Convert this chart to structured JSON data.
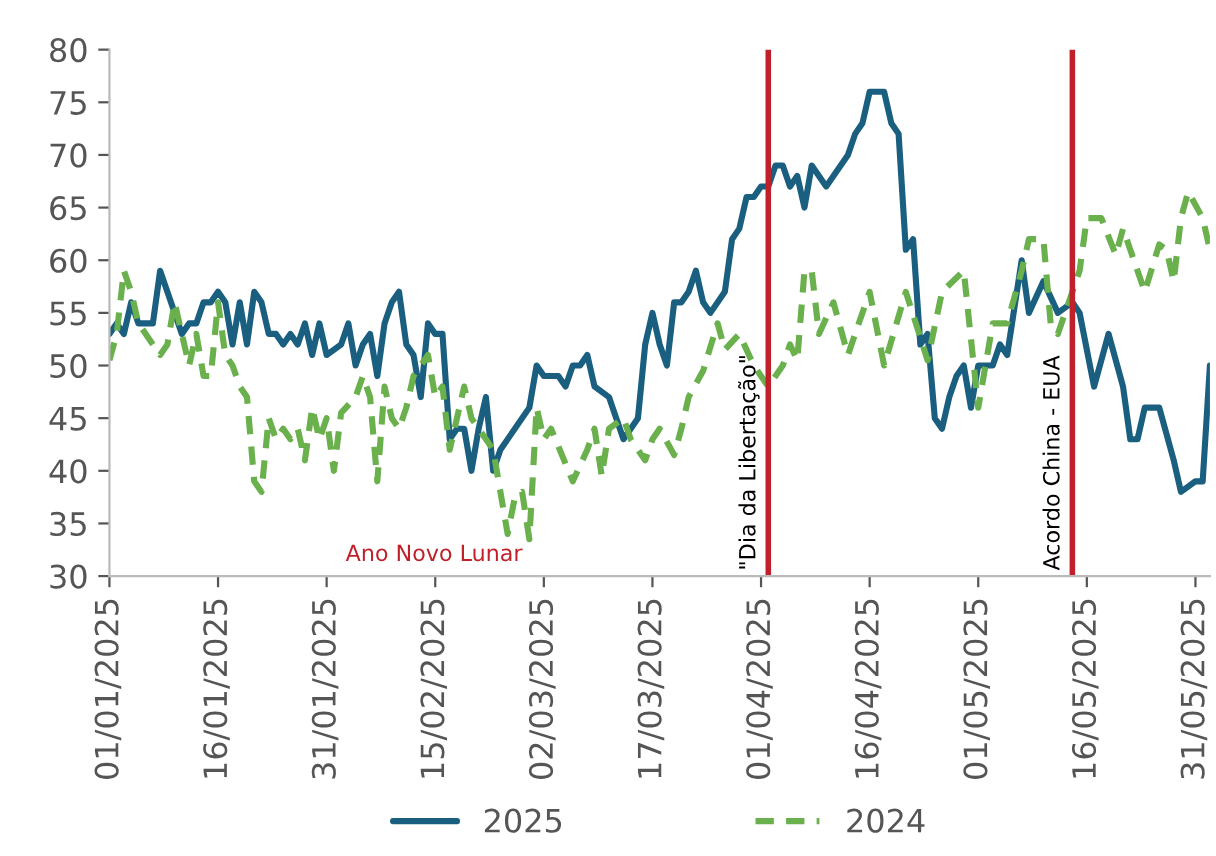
{
  "chart_data": {
    "type": "line",
    "xlim": [
      "2025-01-01",
      "2025-06-02"
    ],
    "ylim": [
      30,
      80
    ],
    "yticks": [
      30,
      35,
      40,
      45,
      50,
      55,
      60,
      65,
      70,
      75,
      80
    ],
    "xticks": [
      {
        "value": "2025-01-01",
        "label": "01/01/2025"
      },
      {
        "value": "2025-01-16",
        "label": "16/01/2025"
      },
      {
        "value": "2025-01-31",
        "label": "31/01/2025"
      },
      {
        "value": "2025-02-15",
        "label": "15/02/2025"
      },
      {
        "value": "2025-03-02",
        "label": "02/03/2025"
      },
      {
        "value": "2025-03-17",
        "label": "17/03/2025"
      },
      {
        "value": "2025-04-01",
        "label": "01/04/2025"
      },
      {
        "value": "2025-04-16",
        "label": "16/04/2025"
      },
      {
        "value": "2025-05-01",
        "label": "01/05/2025"
      },
      {
        "value": "2025-05-16",
        "label": "16/05/2025"
      },
      {
        "value": "2025-05-31",
        "label": "31/05/2025"
      }
    ],
    "grid": false,
    "legend": "bottom",
    "marker": "none",
    "ref_lines": [
      {
        "axis": "x",
        "value": "2025-04-02",
        "label": "\"Dia da Libertação\"",
        "color": "#c0202a",
        "line_style": "solid"
      },
      {
        "axis": "x",
        "value": "2025-05-14",
        "label": "Acordo China - EUA",
        "color": "#c0202a",
        "line_style": "solid"
      }
    ],
    "annotations": [
      "Ano Novo Lunar"
    ],
    "series": [
      {
        "name": "2025",
        "color": "#1a5f80",
        "line_style": "solid",
        "x": [
          "2025-01-01",
          "2025-01-02",
          "2025-01-03",
          "2025-01-04",
          "2025-01-05",
          "2025-01-07",
          "2025-01-08",
          "2025-01-10",
          "2025-01-11",
          "2025-01-12",
          "2025-01-13",
          "2025-01-14",
          "2025-01-15",
          "2025-01-16",
          "2025-01-17",
          "2025-01-18",
          "2025-01-19",
          "2025-01-20",
          "2025-01-21",
          "2025-01-22",
          "2025-01-23",
          "2025-01-24",
          "2025-01-25",
          "2025-01-26",
          "2025-01-27",
          "2025-01-28",
          "2025-01-29",
          "2025-01-30",
          "2025-01-31",
          "2025-02-02",
          "2025-02-03",
          "2025-02-04",
          "2025-02-05",
          "2025-02-06",
          "2025-02-07",
          "2025-02-08",
          "2025-02-09",
          "2025-02-10",
          "2025-02-11",
          "2025-02-12",
          "2025-02-13",
          "2025-02-14",
          "2025-02-15",
          "2025-02-16",
          "2025-02-17",
          "2025-02-18",
          "2025-02-19",
          "2025-02-20",
          "2025-02-21",
          "2025-02-22",
          "2025-02-23",
          "2025-02-24",
          "2025-02-28",
          "2025-03-01",
          "2025-03-02",
          "2025-03-04",
          "2025-03-05",
          "2025-03-06",
          "2025-03-07",
          "2025-03-08",
          "2025-03-09",
          "2025-03-11",
          "2025-03-12",
          "2025-03-13",
          "2025-03-15",
          "2025-03-16",
          "2025-03-17",
          "2025-03-18",
          "2025-03-19",
          "2025-03-20",
          "2025-03-21",
          "2025-03-22",
          "2025-03-23",
          "2025-03-24",
          "2025-03-25",
          "2025-03-27",
          "2025-03-28",
          "2025-03-29",
          "2025-03-30",
          "2025-03-31",
          "2025-04-01",
          "2025-04-02",
          "2025-04-03",
          "2025-04-04",
          "2025-04-05",
          "2025-04-06",
          "2025-04-07",
          "2025-04-08",
          "2025-04-10",
          "2025-04-13",
          "2025-04-14",
          "2025-04-15",
          "2025-04-16",
          "2025-04-18",
          "2025-04-19",
          "2025-04-20",
          "2025-04-21",
          "2025-04-22",
          "2025-04-23",
          "2025-04-24",
          "2025-04-25",
          "2025-04-26",
          "2025-04-27",
          "2025-04-28",
          "2025-04-29",
          "2025-04-30",
          "2025-05-01",
          "2025-05-03",
          "2025-05-04",
          "2025-05-05",
          "2025-05-07",
          "2025-05-08",
          "2025-05-10",
          "2025-05-12",
          "2025-05-14",
          "2025-05-15",
          "2025-05-17",
          "2025-05-19",
          "2025-05-21",
          "2025-05-22",
          "2025-05-23",
          "2025-05-24",
          "2025-05-26",
          "2025-05-28",
          "2025-05-29",
          "2025-05-31",
          "2025-06-01",
          "2025-06-02"
        ],
        "values": [
          53,
          54,
          53,
          56,
          54,
          54,
          59,
          55,
          53,
          54,
          54,
          56,
          56,
          57,
          56,
          52,
          56,
          52,
          57,
          56,
          53,
          53,
          52,
          53,
          52,
          54,
          51,
          54,
          51,
          52,
          54,
          50,
          52,
          53,
          49,
          54,
          56,
          57,
          52,
          51,
          47,
          54,
          53,
          53,
          43,
          44,
          44,
          40,
          44,
          47,
          40,
          42,
          46,
          50,
          49,
          49,
          48,
          50,
          50,
          51,
          48,
          47,
          45,
          43,
          45,
          52,
          55,
          52,
          50,
          56,
          56,
          57,
          59,
          56,
          55,
          57,
          62,
          63,
          66,
          66,
          67,
          67,
          69,
          69,
          67,
          68,
          65,
          69,
          67,
          70,
          72,
          73,
          76,
          76,
          73,
          72,
          61,
          62,
          52,
          53,
          45,
          44,
          47,
          49,
          50,
          46,
          50,
          50,
          52,
          51,
          60,
          55,
          58,
          55,
          56,
          55,
          48,
          53,
          48,
          43,
          43,
          46,
          46,
          41,
          38,
          39,
          39,
          50
        ]
      },
      {
        "name": "2024",
        "color": "#6ab04c",
        "line_style": "dashed",
        "x": [
          "2025-01-01",
          "2025-01-02",
          "2025-01-03",
          "2025-01-04",
          "2025-01-05",
          "2025-01-07",
          "2025-01-08",
          "2025-01-09",
          "2025-01-10",
          "2025-01-11",
          "2025-01-12",
          "2025-01-13",
          "2025-01-14",
          "2025-01-15",
          "2025-01-16",
          "2025-01-17",
          "2025-01-18",
          "2025-01-19",
          "2025-01-20",
          "2025-01-21",
          "2025-01-22",
          "2025-01-23",
          "2025-01-24",
          "2025-01-25",
          "2025-01-26",
          "2025-01-27",
          "2025-01-28",
          "2025-01-29",
          "2025-01-30",
          "2025-01-31",
          "2025-02-01",
          "2025-02-02",
          "2025-02-04",
          "2025-02-05",
          "2025-02-06",
          "2025-02-07",
          "2025-02-08",
          "2025-02-09",
          "2025-02-10",
          "2025-02-11",
          "2025-02-12",
          "2025-02-14",
          "2025-02-15",
          "2025-02-16",
          "2025-02-17",
          "2025-02-19",
          "2025-02-20",
          "2025-02-23",
          "2025-02-24",
          "2025-02-25",
          "2025-02-26",
          "2025-02-27",
          "2025-02-28",
          "2025-03-01",
          "2025-03-02",
          "2025-03-03",
          "2025-03-06",
          "2025-03-08",
          "2025-03-09",
          "2025-03-10",
          "2025-03-11",
          "2025-03-13",
          "2025-03-14",
          "2025-03-16",
          "2025-03-17",
          "2025-03-18",
          "2025-03-20",
          "2025-03-21",
          "2025-03-22",
          "2025-03-24",
          "2025-03-26",
          "2025-03-27",
          "2025-03-29",
          "2025-03-31",
          "2025-04-02",
          "2025-04-04",
          "2025-04-05",
          "2025-04-06",
          "2025-04-07",
          "2025-04-08",
          "2025-04-09",
          "2025-04-11",
          "2025-04-13",
          "2025-04-16",
          "2025-04-18",
          "2025-04-21",
          "2025-04-24",
          "2025-04-26",
          "2025-04-29",
          "2025-05-01",
          "2025-05-03",
          "2025-05-05",
          "2025-05-07",
          "2025-05-08",
          "2025-05-10",
          "2025-05-11",
          "2025-05-12",
          "2025-05-15",
          "2025-05-16",
          "2025-05-18",
          "2025-05-20",
          "2025-05-21",
          "2025-05-22",
          "2025-05-24",
          "2025-05-26",
          "2025-05-27",
          "2025-05-28",
          "2025-05-29",
          "2025-05-30",
          "2025-06-01",
          "2025-06-02"
        ],
        "values": [
          50.5,
          53,
          59,
          57,
          54,
          52,
          51,
          52,
          56,
          53,
          50,
          53,
          49,
          49,
          56,
          51,
          50,
          48,
          47,
          39,
          38,
          45,
          43,
          44,
          43,
          44,
          41,
          46,
          43,
          45,
          40,
          45.5,
          47,
          49,
          47,
          39,
          48,
          45,
          44,
          46,
          49,
          51,
          47,
          48,
          42,
          48,
          45,
          42,
          38,
          34,
          37.5,
          38,
          33.5,
          46,
          43,
          44,
          39,
          42,
          44,
          39.5,
          44,
          45,
          43,
          41,
          43,
          44,
          41.5,
          44,
          47,
          49.5,
          54,
          51.5,
          53,
          50,
          48,
          50,
          52,
          50.5,
          59,
          59,
          53,
          56,
          51,
          57,
          50,
          57,
          50.5,
          57,
          59,
          46,
          54,
          54,
          59,
          62,
          62,
          54,
          53,
          59,
          64,
          64,
          60.5,
          63,
          61,
          57,
          61.5,
          61,
          58,
          64,
          66.5,
          64,
          61
        ]
      }
    ]
  }
}
